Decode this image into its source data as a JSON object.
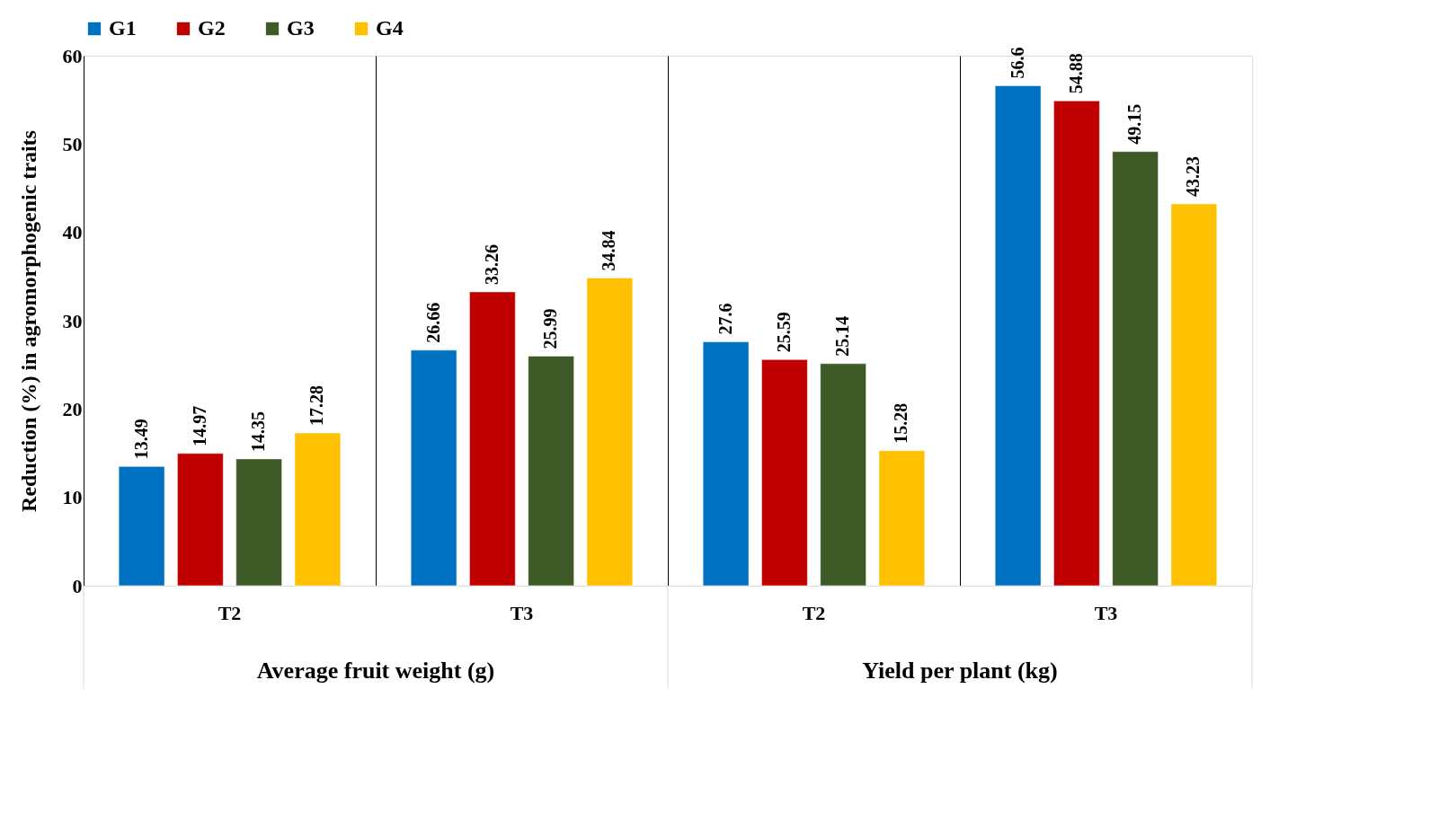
{
  "chart_data": {
    "type": "bar",
    "categories": [
      "T2",
      "T3",
      "T2",
      "T3"
    ],
    "series": [
      {
        "name": "G1",
        "color": "#0070c0",
        "values": [
          13.49,
          26.66,
          27.6,
          56.6
        ]
      },
      {
        "name": "G2",
        "color": "#c00000",
        "values": [
          14.97,
          33.26,
          25.59,
          54.88
        ]
      },
      {
        "name": "G3",
        "color": "#3d5a27",
        "values": [
          14.35,
          25.99,
          25.14,
          49.15
        ]
      },
      {
        "name": "G4",
        "color": "#ffc000",
        "values": [
          17.28,
          34.84,
          15.28,
          43.23
        ]
      }
    ],
    "ylabel": "Reduction (%) in agromorphogenic traits",
    "ylim": [
      0,
      60
    ],
    "yticks": [
      0,
      10,
      20,
      30,
      40,
      50,
      60
    ],
    "annotations": [
      "Average fruit weight (g)",
      "Yield per plant (kg)"
    ],
    "data_labels": true,
    "grid": "x",
    "legend": "top"
  }
}
